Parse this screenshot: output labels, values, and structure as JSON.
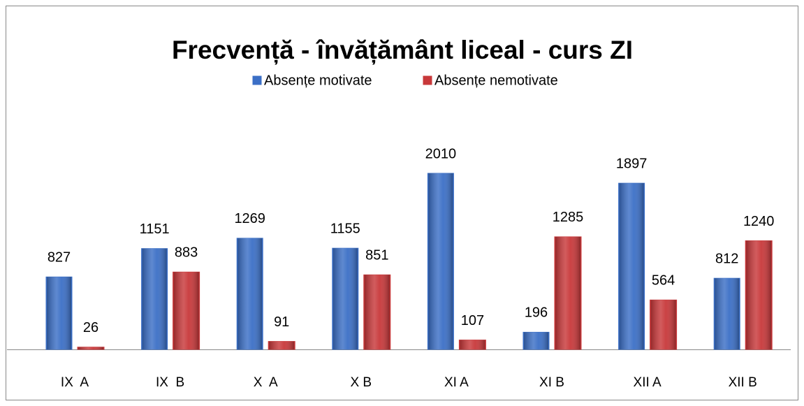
{
  "chart_data": {
    "type": "bar",
    "title": "Frecvență - învățământ liceal - curs ZI",
    "categories": [
      "IX  A",
      "IX  B",
      "X  A",
      "X B",
      "XI A",
      "XI B",
      "XII A",
      "XII B"
    ],
    "series": [
      {
        "name": "Absențe motivate",
        "color": "#3b6fc6",
        "values": [
          827,
          1151,
          1269,
          1155,
          2010,
          196,
          1897,
          812
        ]
      },
      {
        "name": "Absențe nemotivate",
        "color": "#c8383a",
        "values": [
          26,
          883,
          91,
          851,
          107,
          1285,
          564,
          1240
        ]
      }
    ]
  }
}
